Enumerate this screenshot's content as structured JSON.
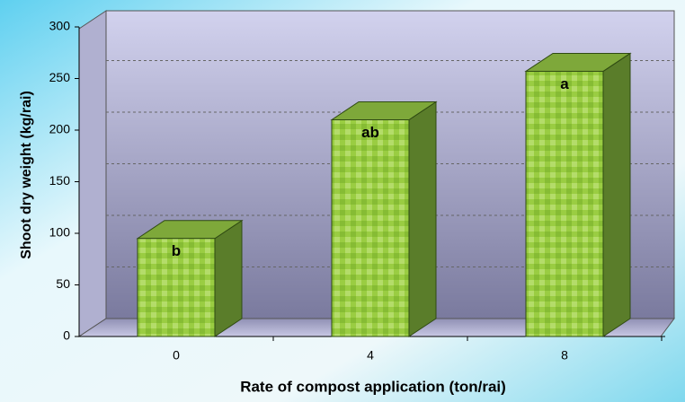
{
  "chart_data": {
    "type": "bar3d",
    "x_label": "Rate of compost application (ton/rai)",
    "y_label": "Shoot dry weight (kg/rai)",
    "categories": [
      "0",
      "4",
      "8"
    ],
    "values": [
      95,
      210,
      257
    ],
    "annotations": [
      "b",
      "ab",
      "a"
    ],
    "color": "#9acd42",
    "ylim": [
      0,
      300
    ],
    "yticks": [
      0,
      50,
      100,
      150,
      200,
      250,
      300
    ],
    "grid": true
  }
}
